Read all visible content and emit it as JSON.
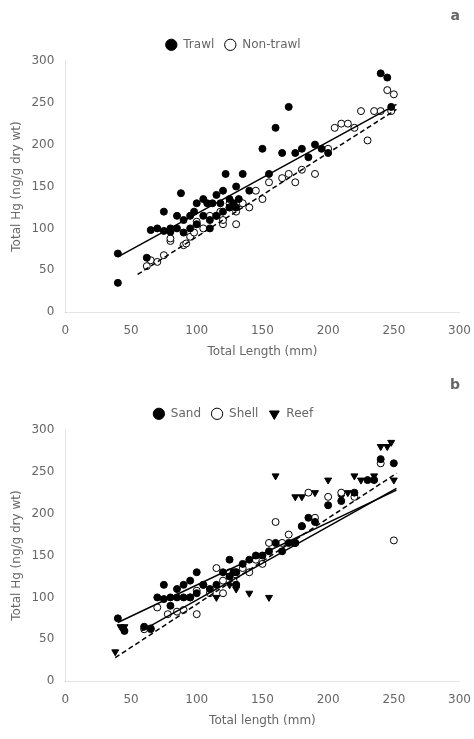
{
  "chart_data": [
    {
      "type": "scatter",
      "title": "a",
      "xlabel": "Total Length (mm)",
      "ylabel": "Total Hg (ng/g dry wt)",
      "xlim": [
        0,
        300
      ],
      "ylim": [
        0,
        300
      ],
      "xticks": [
        0,
        50,
        100,
        150,
        200,
        250,
        300
      ],
      "yticks": [
        0,
        50,
        100,
        150,
        200,
        250,
        300
      ],
      "grid": false,
      "legend": "top",
      "series": [
        {
          "name": "Trawl",
          "color": "#000000",
          "marker": "filled-circle",
          "line_style": "solid",
          "x": [
            40,
            40,
            62,
            65,
            70,
            75,
            75,
            80,
            80,
            85,
            85,
            88,
            90,
            90,
            95,
            95,
            98,
            100,
            100,
            105,
            105,
            108,
            110,
            110,
            112,
            115,
            115,
            118,
            120,
            120,
            122,
            125,
            125,
            128,
            130,
            130,
            132,
            135,
            140,
            150,
            155,
            160,
            165,
            170,
            175,
            180,
            185,
            190,
            195,
            200,
            240,
            245,
            248
          ],
          "values": [
            35,
            70,
            65,
            98,
            100,
            97,
            120,
            96,
            100,
            100,
            115,
            142,
            95,
            110,
            100,
            115,
            120,
            105,
            130,
            115,
            135,
            130,
            100,
            110,
            130,
            115,
            140,
            130,
            120,
            145,
            165,
            125,
            135,
            130,
            150,
            125,
            135,
            165,
            145,
            195,
            165,
            220,
            190,
            245,
            190,
            195,
            185,
            200,
            195,
            190,
            285,
            280,
            245
          ],
          "line_x": [
            40,
            252
          ],
          "line_values": [
            66,
            248
          ]
        },
        {
          "name": "Non-trawl",
          "color": "#000000",
          "marker": "open-circle",
          "line_style": "dashed",
          "x": [
            62,
            65,
            70,
            75,
            80,
            80,
            90,
            92,
            95,
            98,
            100,
            100,
            105,
            110,
            115,
            118,
            120,
            120,
            125,
            125,
            130,
            130,
            132,
            135,
            140,
            145,
            150,
            155,
            165,
            170,
            175,
            180,
            190,
            200,
            205,
            210,
            215,
            220,
            225,
            230,
            235,
            240,
            245,
            248,
            250
          ],
          "values": [
            55,
            62,
            60,
            68,
            85,
            88,
            80,
            82,
            90,
            95,
            105,
            108,
            100,
            115,
            115,
            120,
            105,
            110,
            130,
            125,
            105,
            120,
            130,
            130,
            125,
            145,
            135,
            155,
            160,
            165,
            155,
            170,
            165,
            195,
            220,
            225,
            225,
            220,
            240,
            205,
            240,
            240,
            265,
            240,
            260
          ],
          "line_x": [
            55,
            252
          ],
          "line_values": [
            45,
            242
          ]
        }
      ]
    },
    {
      "type": "scatter",
      "title": "b",
      "xlabel": "Total length (mm)",
      "ylabel": "Total Hg (ng/g dry wt)",
      "xlim": [
        0,
        300
      ],
      "ylim": [
        0,
        300
      ],
      "xticks": [
        0,
        50,
        100,
        150,
        200,
        250,
        300
      ],
      "yticks": [
        0,
        50,
        100,
        150,
        200,
        250,
        300
      ],
      "grid": false,
      "legend": "top",
      "series": [
        {
          "name": "Sand",
          "color": "#000000",
          "marker": "filled-circle",
          "line_style": "solid",
          "x": [
            40,
            45,
            60,
            65,
            70,
            75,
            75,
            80,
            80,
            85,
            85,
            90,
            90,
            95,
            95,
            100,
            100,
            105,
            110,
            115,
            120,
            125,
            125,
            128,
            130,
            130,
            135,
            140,
            145,
            150,
            155,
            160,
            165,
            170,
            175,
            180,
            185,
            190,
            200,
            210,
            220,
            230,
            235,
            240,
            250
          ],
          "values": [
            75,
            60,
            65,
            63,
            100,
            98,
            115,
            90,
            100,
            100,
            110,
            100,
            115,
            100,
            120,
            105,
            130,
            115,
            110,
            115,
            130,
            125,
            145,
            130,
            130,
            115,
            140,
            145,
            150,
            150,
            155,
            165,
            155,
            165,
            165,
            185,
            195,
            190,
            210,
            215,
            225,
            240,
            240,
            265,
            260
          ],
          "line_x": [
            40,
            252
          ],
          "line_values": [
            70,
            228
          ]
        },
        {
          "name": "Shell",
          "color": "#000000",
          "marker": "open-circle",
          "line_style": "solid",
          "x": [
            60,
            65,
            70,
            78,
            85,
            90,
            95,
            100,
            100,
            105,
            110,
            115,
            120,
            120,
            125,
            128,
            130,
            130,
            135,
            140,
            145,
            150,
            155,
            160,
            165,
            170,
            175,
            180,
            185,
            190,
            200,
            210,
            220,
            240,
            250
          ],
          "values": [
            62,
            62,
            88,
            80,
            83,
            85,
            100,
            80,
            108,
            115,
            105,
            135,
            105,
            120,
            130,
            120,
            115,
            130,
            135,
            130,
            145,
            140,
            165,
            190,
            165,
            175,
            165,
            185,
            225,
            195,
            220,
            225,
            220,
            260,
            168
          ],
          "line_x": [
            58,
            252
          ],
          "line_values": [
            60,
            230
          ]
        },
        {
          "name": "Reef",
          "color": "#000000",
          "marker": "triangle-down",
          "line_style": "dashed",
          "x": [
            38,
            42,
            45,
            115,
            125,
            130,
            140,
            155,
            160,
            175,
            180,
            190,
            200,
            210,
            215,
            220,
            225,
            235,
            240,
            245,
            248,
            250
          ],
          "values": [
            35,
            65,
            65,
            100,
            115,
            110,
            105,
            100,
            245,
            220,
            220,
            225,
            240,
            220,
            225,
            245,
            240,
            245,
            280,
            280,
            285,
            240
          ],
          "line_x": [
            38,
            252
          ],
          "line_values": [
            28,
            248
          ]
        }
      ]
    }
  ]
}
